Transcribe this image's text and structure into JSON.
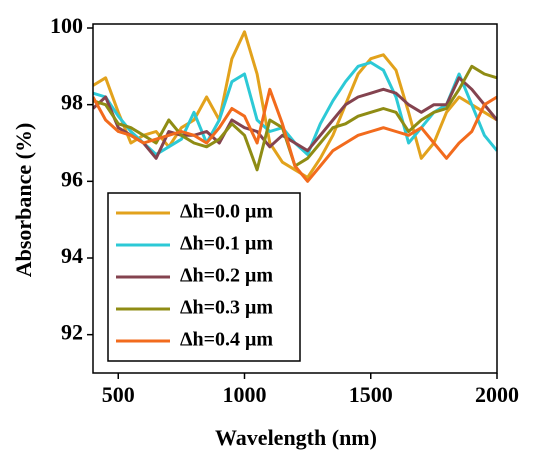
{
  "chart_data": {
    "type": "line",
    "x_label": "Wavelength (nm)",
    "y_label": "Absorbance (%)",
    "x": [
      400,
      450,
      500,
      550,
      600,
      650,
      700,
      750,
      800,
      850,
      900,
      950,
      1000,
      1050,
      1100,
      1150,
      1200,
      1250,
      1300,
      1350,
      1400,
      1450,
      1500,
      1550,
      1600,
      1650,
      1700,
      1750,
      1800,
      1850,
      1900,
      1950,
      2000
    ],
    "series": [
      {
        "name": "Δh=0.0 μm",
        "color": "#e2a21c",
        "values": [
          98.5,
          98.7,
          97.8,
          97.0,
          97.2,
          97.3,
          96.9,
          97.4,
          97.6,
          98.2,
          97.6,
          99.2,
          99.9,
          98.8,
          97.0,
          96.5,
          96.3,
          96.1,
          96.6,
          97.2,
          98.0,
          98.8,
          99.2,
          99.3,
          98.9,
          97.8,
          96.6,
          97.0,
          97.8,
          98.2,
          98.0,
          97.8,
          97.6
        ]
      },
      {
        "name": "Δh=0.1 μm",
        "color": "#2cc9d6",
        "values": [
          98.3,
          98.2,
          97.7,
          97.3,
          97.0,
          96.7,
          96.9,
          97.1,
          97.8,
          97.0,
          97.6,
          98.6,
          98.8,
          97.6,
          97.3,
          97.4,
          97.0,
          96.7,
          97.5,
          98.1,
          98.6,
          99.0,
          99.1,
          98.9,
          98.2,
          97.0,
          97.4,
          97.8,
          98.0,
          98.8,
          98.0,
          97.2,
          96.8
        ]
      },
      {
        "name": "Δh=0.2 μm",
        "color": "#84434f",
        "values": [
          97.9,
          98.2,
          97.4,
          97.2,
          97.0,
          96.6,
          97.3,
          97.2,
          97.2,
          97.3,
          97.0,
          97.6,
          97.4,
          97.3,
          96.9,
          97.2,
          97.0,
          96.8,
          97.2,
          97.6,
          98.0,
          98.2,
          98.3,
          98.4,
          98.3,
          98.0,
          97.8,
          98.0,
          98.0,
          98.7,
          98.4,
          98.0,
          97.6
        ]
      },
      {
        "name": "Δh=0.3 μm",
        "color": "#8f8c14",
        "values": [
          98.1,
          98.0,
          97.5,
          97.4,
          97.2,
          97.0,
          97.6,
          97.2,
          97.0,
          96.9,
          97.1,
          97.5,
          97.2,
          96.3,
          97.6,
          97.4,
          96.4,
          96.6,
          97.0,
          97.4,
          97.5,
          97.7,
          97.8,
          97.9,
          97.8,
          97.3,
          97.6,
          97.8,
          97.9,
          98.4,
          99.0,
          98.8,
          98.7
        ]
      },
      {
        "name": "Δh=0.4 μm",
        "color": "#f26b1d",
        "values": [
          98.2,
          97.6,
          97.3,
          97.2,
          97.0,
          97.1,
          97.2,
          97.3,
          97.2,
          97.0,
          97.4,
          97.9,
          97.7,
          97.0,
          98.4,
          97.5,
          96.4,
          96.0,
          96.4,
          96.8,
          97.0,
          97.2,
          97.3,
          97.4,
          97.3,
          97.2,
          97.4,
          97.0,
          96.6,
          97.0,
          97.3,
          98.0,
          98.2
        ]
      }
    ],
    "xlim": [
      400,
      2000
    ],
    "xticks": [
      500,
      1000,
      1500,
      2000
    ],
    "ylim": [
      91,
      100
    ],
    "yticks": [
      92,
      94,
      96,
      98,
      100
    ],
    "legend": "lower left"
  }
}
